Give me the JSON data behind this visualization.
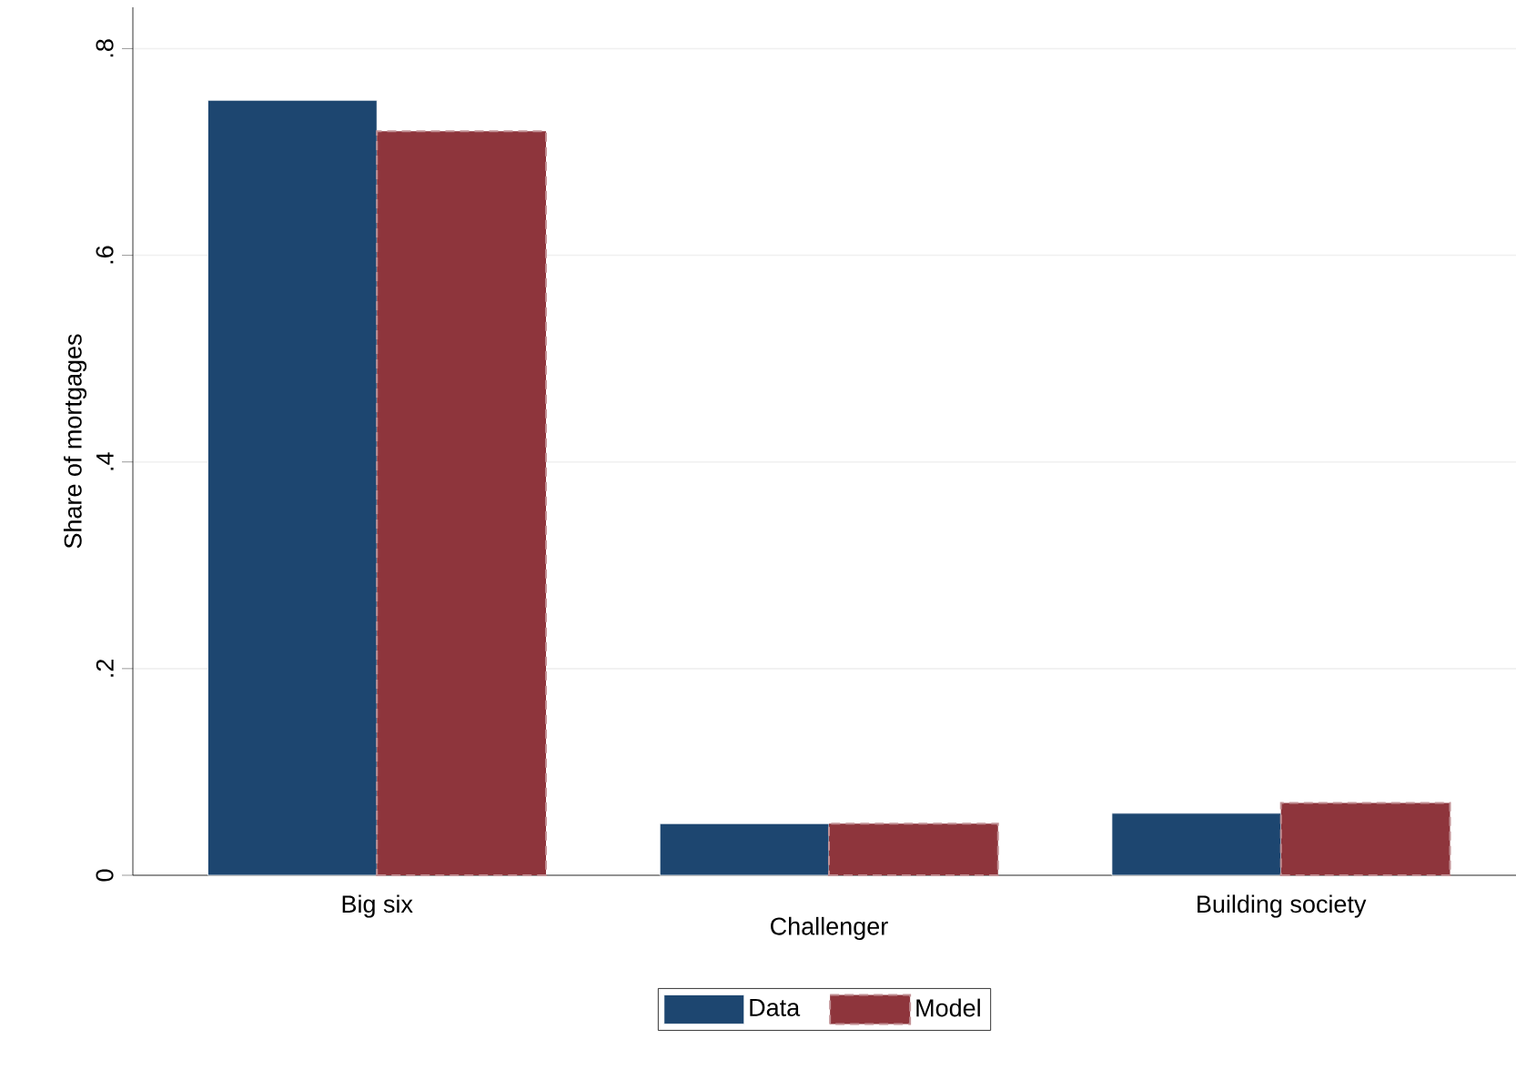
{
  "chart_data": {
    "type": "bar",
    "ylabel": "Share of mortgages",
    "categories": [
      "Big six",
      "Challenger",
      "Building society"
    ],
    "series": [
      {
        "name": "Data",
        "color": "#1d4670",
        "values": [
          0.75,
          0.05,
          0.06
        ]
      },
      {
        "name": "Model",
        "color": "#8e353c",
        "line_style": "dashed",
        "values": [
          0.72,
          0.05,
          0.07
        ]
      }
    ],
    "ylim": [
      0,
      0.84
    ],
    "yticks": [
      0,
      {
        "value": 0.2,
        "label": ".2"
      },
      {
        "value": 0.4,
        "label": ".4"
      },
      {
        "value": 0.6,
        "label": ".6"
      },
      {
        "value": 0.8,
        "label": ".8"
      }
    ],
    "grid": "y",
    "legend": "bottom"
  }
}
